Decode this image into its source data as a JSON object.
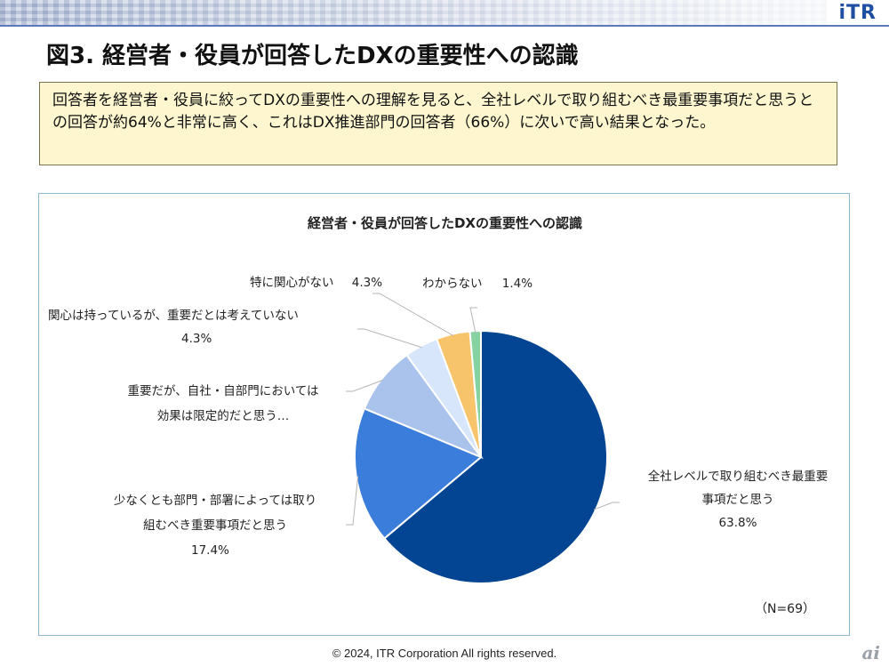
{
  "logo": "iTR",
  "title": "図3. 経営者・役員が回答したDXの重要性への認識",
  "summary": "回答者を経営者・役員に絞ってDXの重要性への理解を見ると、全社レベルで取り組むべき最重要事項だと思うとの回答が約64%と非常に高く、これはDX推進部門の回答者（66%）に次いで高い結果となった。",
  "footer": "© 2024, ITR Corporation All rights reserved.",
  "watermark": "ai",
  "colors": {
    "accent": "#1f4fa3",
    "slices": [
      "#034592",
      "#3b7ddb",
      "#a9c3ec",
      "#d8e6fb",
      "#f7c46b",
      "#86d2a0"
    ]
  },
  "chart_data": {
    "type": "pie",
    "title": "経営者・役員が回答したDXの重要性への認識",
    "note": "（N=69）",
    "slices": [
      {
        "label": "全社レベルで取り組むべき最重要事項だと思う",
        "label_lines": [
          "全社レベルで取り組むべき最重要",
          "事項だと思う"
        ],
        "value": 63.8,
        "value_text": "63.8%"
      },
      {
        "label": "少なくとも部門・部署によっては取り組むべき重要事項だと思う",
        "label_lines": [
          "少なくとも部門・部署によっては取り",
          "組むべき重要事項だと思う"
        ],
        "value": 17.4,
        "value_text": "17.4%"
      },
      {
        "label": "重要だが、自社・自部門においては効果は限定的だと思う…",
        "label_lines": [
          "重要だが、自社・自部門においては",
          "効果は限定的だと思う…"
        ],
        "value": 8.7,
        "value_text": ""
      },
      {
        "label": "関心は持っているが、重要だとは考えていない",
        "label_lines": [
          "関心は持っているが、重要だとは考えていない"
        ],
        "value": 4.3,
        "value_text": "4.3%"
      },
      {
        "label": "特に関心がない",
        "label_lines": [
          "特に関心がない"
        ],
        "value": 4.3,
        "value_text": "4.3%"
      },
      {
        "label": "わからない",
        "label_lines": [
          "わからない"
        ],
        "value": 1.4,
        "value_text": "1.4%"
      }
    ]
  }
}
